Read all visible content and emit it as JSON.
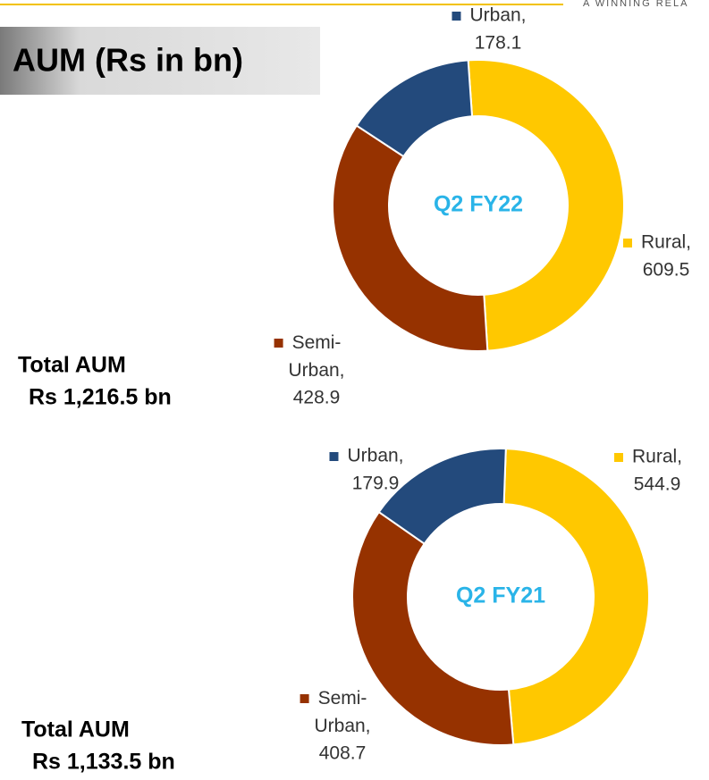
{
  "title": "AUM (Rs in bn)",
  "tagline": "A WINNING RELA",
  "chart_data": [
    {
      "type": "donut",
      "center_label": "Q2 FY22",
      "total_label": [
        "Total AUM",
        "Rs 1,216.5 bn"
      ],
      "categories": [
        "Rural,",
        "Semi-Urban,",
        "Urban,"
      ],
      "values": [
        609.5,
        428.9,
        178.1
      ],
      "colors": [
        "#ffc800",
        "#963200",
        "#234a7c"
      ]
    },
    {
      "type": "donut",
      "center_label": "Q2 FY21",
      "total_label": [
        "Total AUM",
        "Rs 1,133.5 bn"
      ],
      "categories": [
        "Rural,",
        "Semi-Urban,",
        "Urban,"
      ],
      "values": [
        544.9,
        408.7,
        179.9
      ],
      "colors": [
        "#ffc800",
        "#963200",
        "#234a7c"
      ]
    }
  ]
}
